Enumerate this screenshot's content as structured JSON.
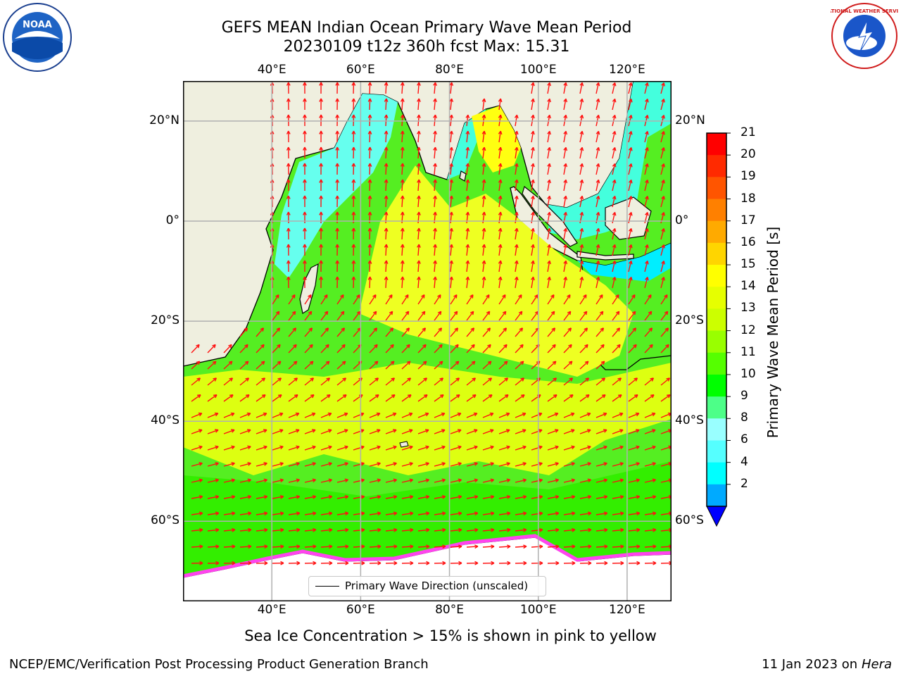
{
  "header": {
    "title_line1": "GEFS MEAN Indian Ocean Primary Wave Mean Period",
    "title_line2": "20230109 t12z 360h fcst   Max: 15.31"
  },
  "map": {
    "lon_labels": [
      "40°E",
      "60°E",
      "80°E",
      "100°E",
      "120°E"
    ],
    "lat_labels": [
      "20°N",
      "0°",
      "20°S",
      "40°S",
      "60°S"
    ],
    "lon_values": [
      40,
      60,
      80,
      100,
      120
    ],
    "lat_values": [
      20,
      0,
      -20,
      -40,
      -60
    ],
    "lon_range": [
      20,
      130
    ],
    "lat_range": [
      -76,
      28
    ],
    "land_color": "#efefdf",
    "ice_color": "#ff44ee",
    "arrow_color": "#ff1111",
    "grid": true
  },
  "legend": {
    "label": "Primary Wave Direction (unscaled)"
  },
  "colorbar": {
    "label": "Primary Wave Mean Period [s]",
    "ticks": [
      "21",
      "20",
      "19",
      "18",
      "17",
      "16",
      "15",
      "14",
      "13",
      "12",
      "11",
      "10",
      "9",
      "8",
      "6",
      "4",
      "2"
    ],
    "colors": [
      "#ff0000",
      "#ff2a00",
      "#ff5500",
      "#ff8000",
      "#ffaa00",
      "#ffd500",
      "#ffff00",
      "#e6ff00",
      "#ccff00",
      "#99ff00",
      "#55ff00",
      "#00ff00",
      "#4dff88",
      "#99ffff",
      "#55ffff",
      "#00ffff",
      "#00aaff"
    ],
    "under_color": "#0000ff"
  },
  "logos": {
    "noaa_text": "NOAA",
    "nws_text": "NATIONAL WEATHER SERVICE"
  },
  "note": "Sea Ice Concentration > 15% is shown in pink to yellow",
  "footer": {
    "left": "NCEP/EMC/Verification Post Processing Product Generation Branch",
    "right_prefix": "11 Jan 2023 on",
    "right_host": "Hera"
  }
}
